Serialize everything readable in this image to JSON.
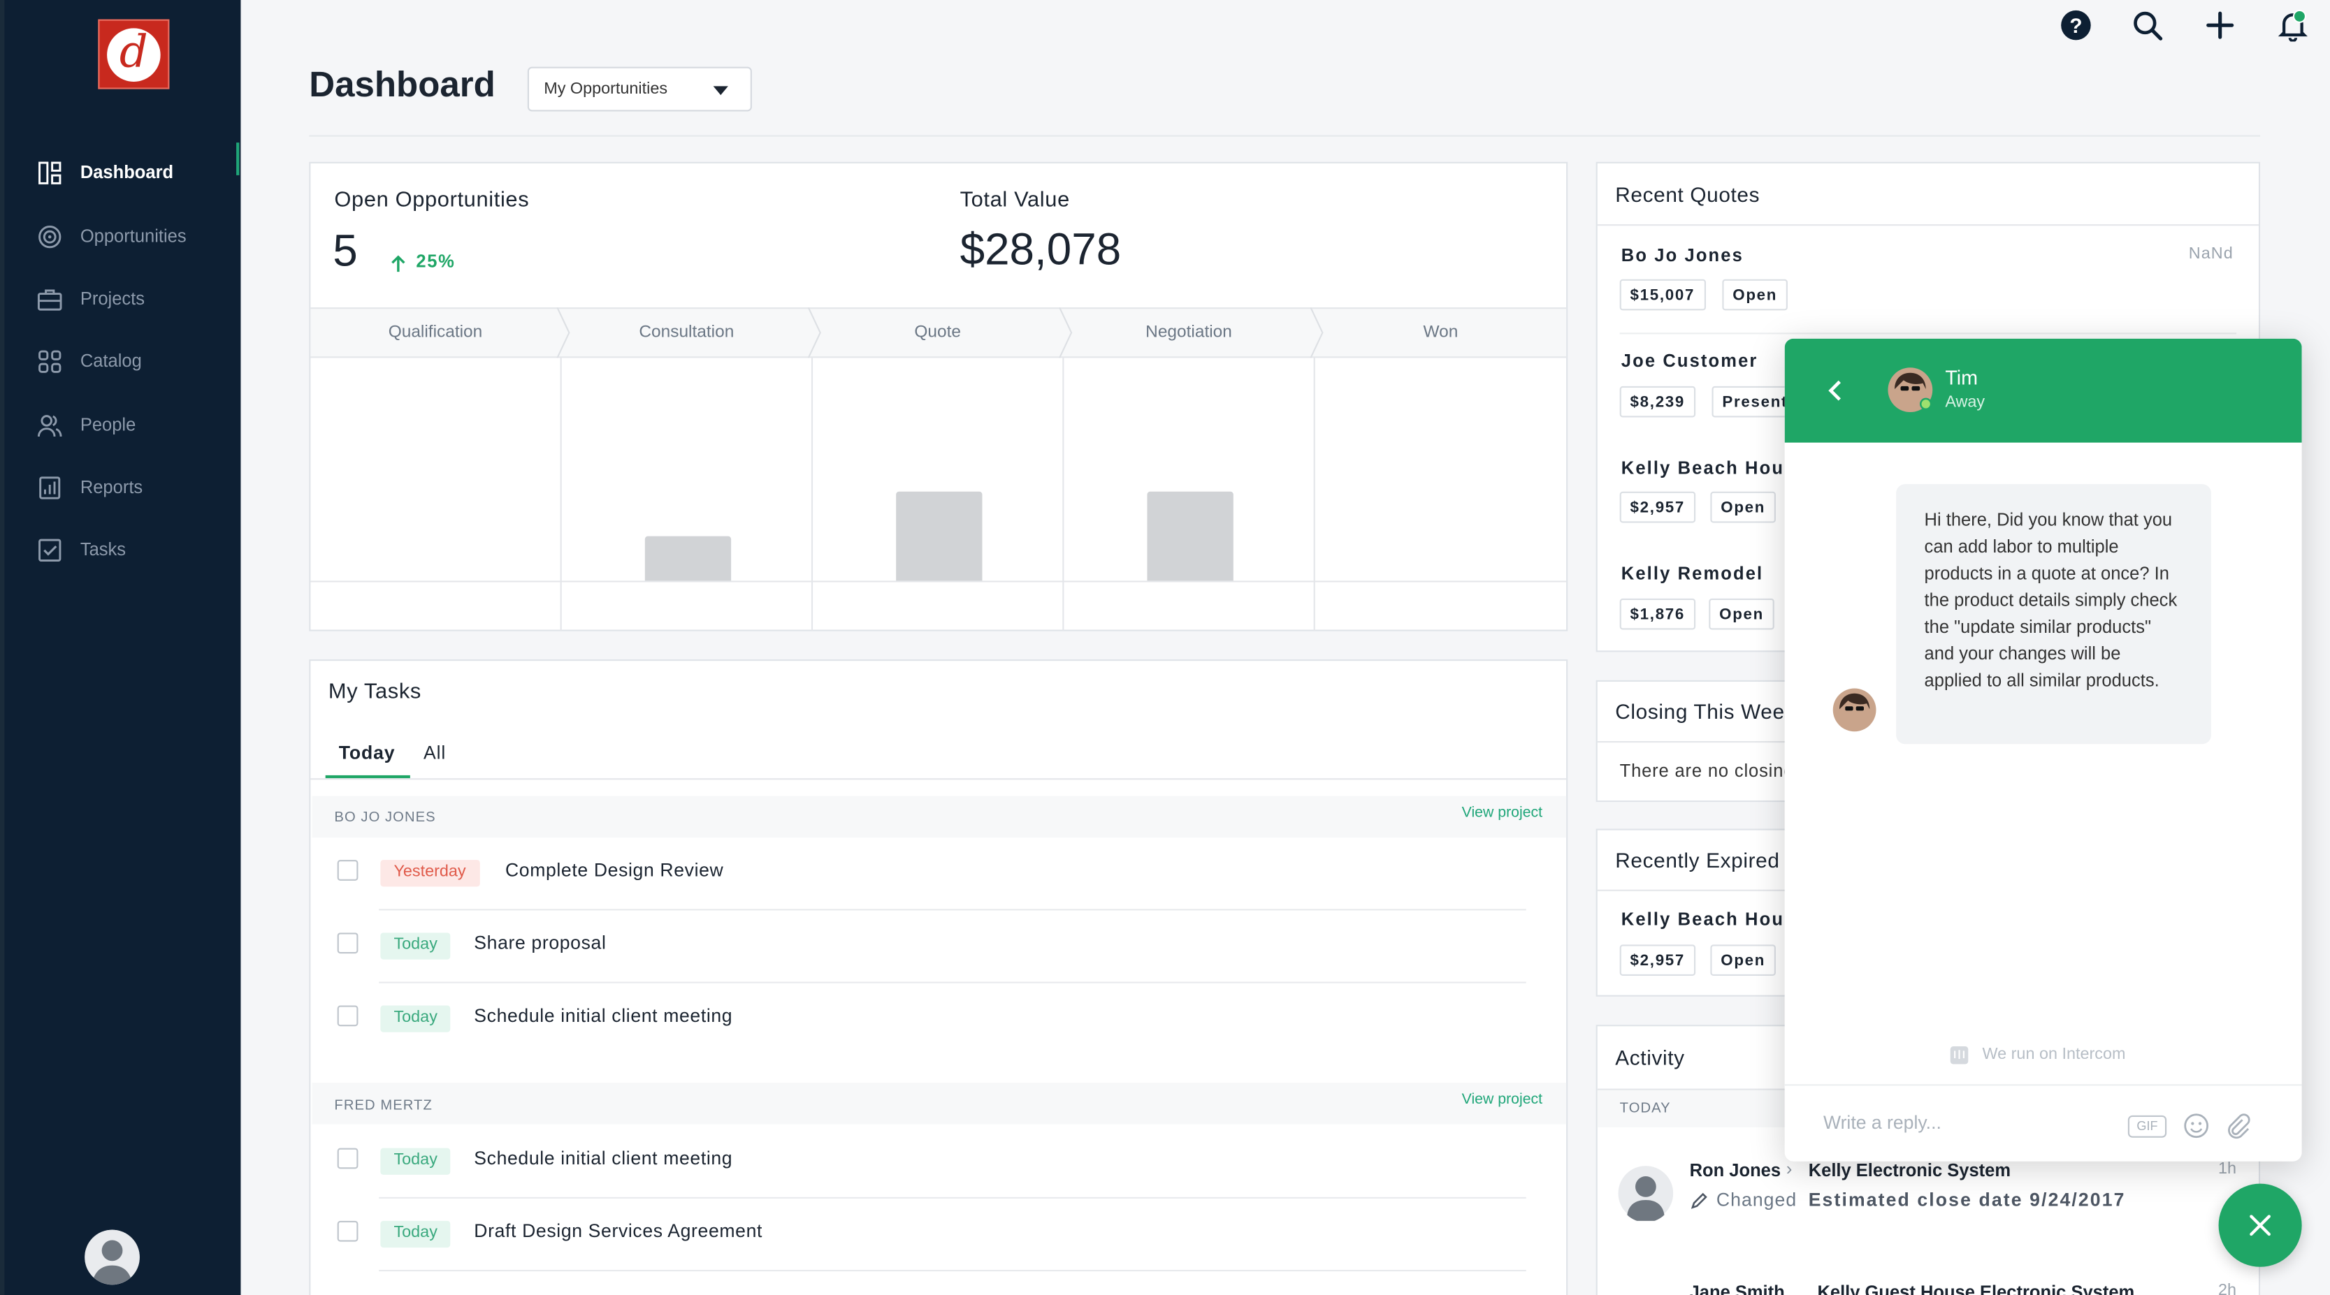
{
  "sidebar": {
    "logo_letter": "d",
    "items": [
      {
        "label": "Dashboard",
        "icon": "dashboard-icon"
      },
      {
        "label": "Opportunities",
        "icon": "target-icon"
      },
      {
        "label": "Projects",
        "icon": "briefcase-icon"
      },
      {
        "label": "Catalog",
        "icon": "grid-icon"
      },
      {
        "label": "People",
        "icon": "people-icon"
      },
      {
        "label": "Reports",
        "icon": "report-icon"
      },
      {
        "label": "Tasks",
        "icon": "checkbox-icon"
      }
    ]
  },
  "header": {
    "title": "Dashboard",
    "filter_value": "My Opportunities",
    "icons": [
      "help-icon",
      "search-icon",
      "add-icon",
      "notification-icon"
    ]
  },
  "opportunities": {
    "open_label": "Open Opportunities",
    "open_count": "5",
    "change": "25%",
    "total_label": "Total Value",
    "total_value": "$28,078",
    "stages": [
      "Qualification",
      "Consultation",
      "Quote",
      "Negotiation",
      "Won"
    ],
    "stage_counts": [
      "",
      "1",
      "2",
      "2",
      ""
    ],
    "stage_values": [
      0,
      1,
      2,
      2,
      0
    ]
  },
  "tasks": {
    "title": "My Tasks",
    "tab_today": "Today",
    "tab_all": "All",
    "view_project": "View project",
    "groups": [
      {
        "name": "BO JO JONES",
        "items": [
          {
            "tag": "Yesterday",
            "title": "Complete Design Review"
          },
          {
            "tag": "Today",
            "title": "Share proposal"
          },
          {
            "tag": "Today",
            "title": "Schedule initial client meeting"
          }
        ]
      },
      {
        "name": "FRED MERTZ",
        "items": [
          {
            "tag": "Today",
            "title": "Schedule initial client meeting"
          },
          {
            "tag": "Today",
            "title": "Draft Design Services Agreement"
          }
        ]
      }
    ]
  },
  "recent_quotes": {
    "title": "Recent Quotes",
    "items": [
      {
        "name": "Bo Jo Jones",
        "amount": "$15,007",
        "status": "Open",
        "time": "NaNd"
      },
      {
        "name": "Joe Customer",
        "amount": "$8,239",
        "status": "Presented"
      },
      {
        "name": "Kelly Beach House",
        "amount": "$2,957",
        "status": "Open"
      },
      {
        "name": "Kelly Remodel",
        "amount": "$1,876",
        "status": "Open"
      }
    ]
  },
  "closing": {
    "title": "Closing This Week",
    "empty": "There are no closing opportunities"
  },
  "expired": {
    "title": "Recently Expired",
    "item": {
      "name": "Kelly Beach House",
      "amount": "$2,957",
      "status": "Open"
    }
  },
  "activity": {
    "title": "Activity",
    "section": "TODAY",
    "items": [
      {
        "user": "Ron Jones",
        "target": "Kelly Electronic System",
        "action": "Changed",
        "detail": "Estimated close date 9/24/2017",
        "time": "1h"
      },
      {
        "user": "Jane Smith",
        "target": "Kelly Guest House Electronic System",
        "time": "2h"
      }
    ]
  },
  "chat": {
    "name": "Tim",
    "status": "Away",
    "message": "Hi there, Did you know that you can add labor to multiple products in a quote at once? In the product details simply check the \"update similar products\" and your changes will be applied to all similar products.",
    "powered": "We run on Intercom",
    "placeholder": "Write a reply...",
    "gif": "GIF"
  },
  "colors": {
    "accent": "#1fa666",
    "sidebar": "#0d1f33",
    "danger": "#e05a4a"
  }
}
